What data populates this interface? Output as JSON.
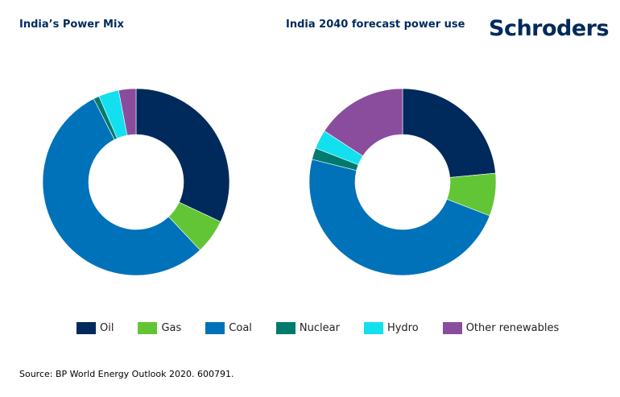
{
  "brand": "Schroders",
  "source": "Source: BP World Energy Outlook 2020. 600791.",
  "categories": [
    "Oil",
    "Gas",
    "Coal",
    "Nuclear",
    "Hydro",
    "Other renewables"
  ],
  "colors": [
    "#002a5c",
    "#62c536",
    "#0072b9",
    "#007a6e",
    "#13e0ef",
    "#8a4d9e"
  ],
  "chart_data": [
    {
      "type": "pie",
      "variant": "donut",
      "title": "India’s Power Mix",
      "categories": [
        "Oil",
        "Gas",
        "Coal",
        "Nuclear",
        "Hydro",
        "Other renewables"
      ],
      "values": [
        32,
        6,
        54.5,
        1,
        3.5,
        3
      ],
      "unit": "% (estimated)",
      "legend": "bottom"
    },
    {
      "type": "pie",
      "variant": "donut",
      "title": "India 2040 forecast power use",
      "categories": [
        "Oil",
        "Gas",
        "Coal",
        "Nuclear",
        "Hydro",
        "Other renewables"
      ],
      "values": [
        23.5,
        7.4,
        48,
        2,
        3.3,
        15.8
      ],
      "unit": "% (estimated)",
      "legend": "bottom"
    }
  ]
}
